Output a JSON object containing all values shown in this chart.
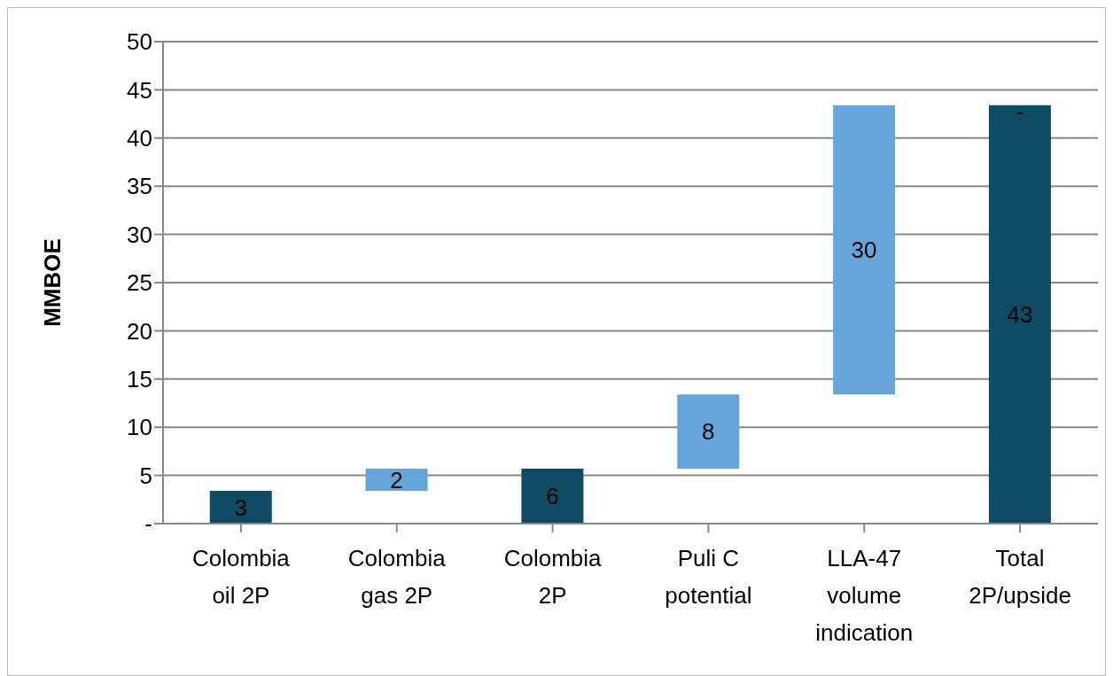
{
  "chart_data": {
    "type": "bar",
    "ylabel": "MMBOE",
    "categories": [
      "Colombia oil 2P",
      "Colombia gas 2P",
      "Colombia 2P",
      "Puli C potential",
      "LLA-47 volume indication",
      "Total 2P/upside"
    ],
    "base": [
      0,
      3.4,
      0,
      5.7,
      13.4,
      0
    ],
    "values": [
      3.4,
      2.3,
      5.7,
      7.7,
      30,
      43.4
    ],
    "colors": [
      "#0d4c63",
      "#65a5d9",
      "#0d4c63",
      "#65a5d9",
      "#65a5d9",
      "#0d4c63"
    ],
    "value_labels": [
      "3",
      "2",
      "6",
      "8",
      "30",
      "43"
    ],
    "annotations": [
      {
        "text": "-",
        "x": "Total 2P/upside",
        "y": 43.4
      }
    ],
    "ylim": [
      0,
      50
    ],
    "yticks": [
      {
        "value": 0,
        "label": "-"
      },
      5,
      10,
      15,
      20,
      25,
      30,
      35,
      40,
      45,
      50
    ],
    "grid": "y"
  }
}
